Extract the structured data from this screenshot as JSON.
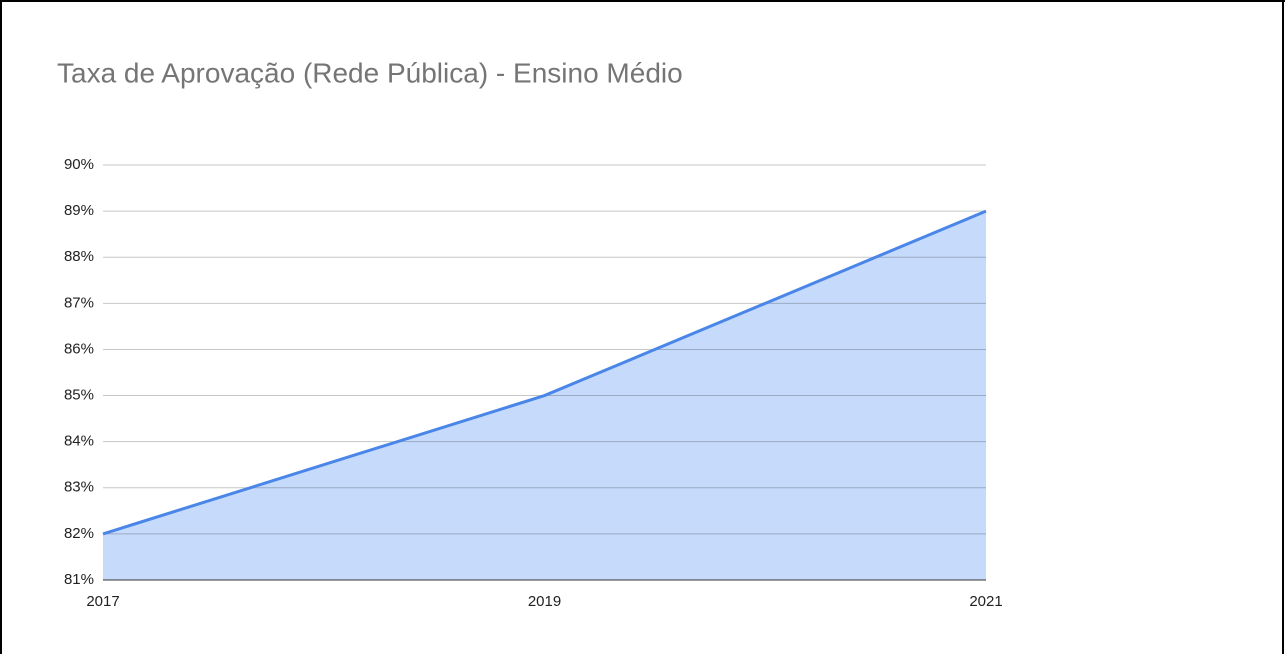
{
  "chart_data": {
    "type": "area",
    "title": "Taxa de Aprovação (Rede Pública) - Ensino Médio",
    "categories": [
      "2017",
      "2019",
      "2021"
    ],
    "values": [
      82,
      85,
      89
    ],
    "color": "#4a86e8",
    "area_color": "#c6dafc",
    "ylim": [
      81,
      90
    ],
    "yticks": [
      {
        "value": 81,
        "label": "81%"
      },
      {
        "value": 82,
        "label": "82%"
      },
      {
        "value": 83,
        "label": "83%"
      },
      {
        "value": 84,
        "label": "84%"
      },
      {
        "value": 85,
        "label": "85%"
      },
      {
        "value": 86,
        "label": "86%"
      },
      {
        "value": 87,
        "label": "87%"
      },
      {
        "value": 88,
        "label": "88%"
      },
      {
        "value": 89,
        "label": "89%"
      },
      {
        "value": 90,
        "label": "90%"
      }
    ],
    "grid": true
  }
}
